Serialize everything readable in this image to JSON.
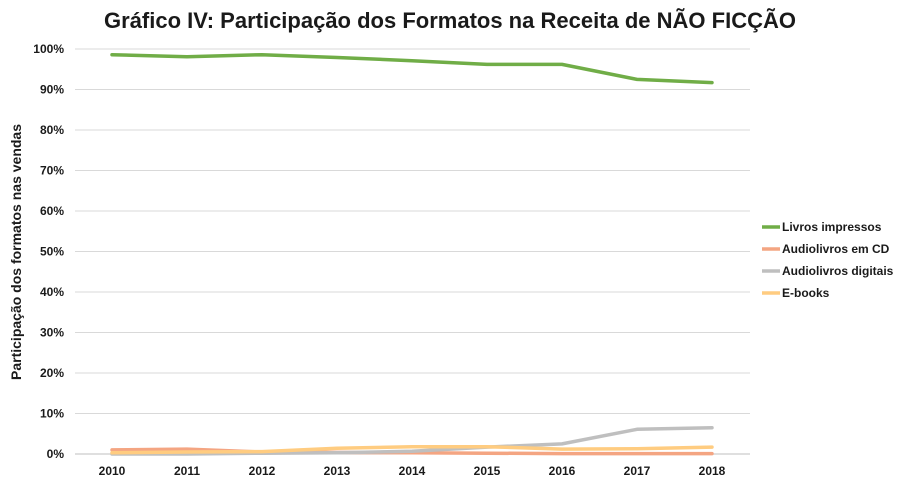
{
  "chart_data": {
    "type": "line",
    "title": "Gráfico IV:  Participação dos Formatos na Receita de NÃO FICÇÃO",
    "xlabel": "",
    "ylabel": "Participação dos formatos nas vendas",
    "x": [
      "2010",
      "2011",
      "2012",
      "2013",
      "2014",
      "2015",
      "2016",
      "2017",
      "2018"
    ],
    "yticks": [
      "0%",
      "10%",
      "20%",
      "30%",
      "40%",
      "50%",
      "60%",
      "70%",
      "80%",
      "90%",
      "100%"
    ],
    "ylim": [
      0,
      100
    ],
    "grid": true,
    "legend_position": "right",
    "series": [
      {
        "name": "Livros impressos",
        "color": "#70ad47",
        "values": [
          98.6,
          98.1,
          98.6,
          97.9,
          97.1,
          96.2,
          96.2,
          92.5,
          91.7
        ]
      },
      {
        "name": "Audiolivros em CD",
        "color": "#f4a582",
        "values": [
          1.0,
          1.2,
          0.5,
          0.4,
          0.3,
          0.2,
          0.1,
          0.1,
          0.1
        ]
      },
      {
        "name": "Audiolivros digitais",
        "color": "#bfbfbf",
        "values": [
          0.0,
          0.0,
          0.2,
          0.3,
          0.7,
          1.7,
          2.5,
          6.1,
          6.5
        ]
      },
      {
        "name": "E-books",
        "color": "#ffcc80",
        "values": [
          0.3,
          0.5,
          0.6,
          1.4,
          1.8,
          1.8,
          1.2,
          1.3,
          1.7
        ]
      }
    ]
  }
}
